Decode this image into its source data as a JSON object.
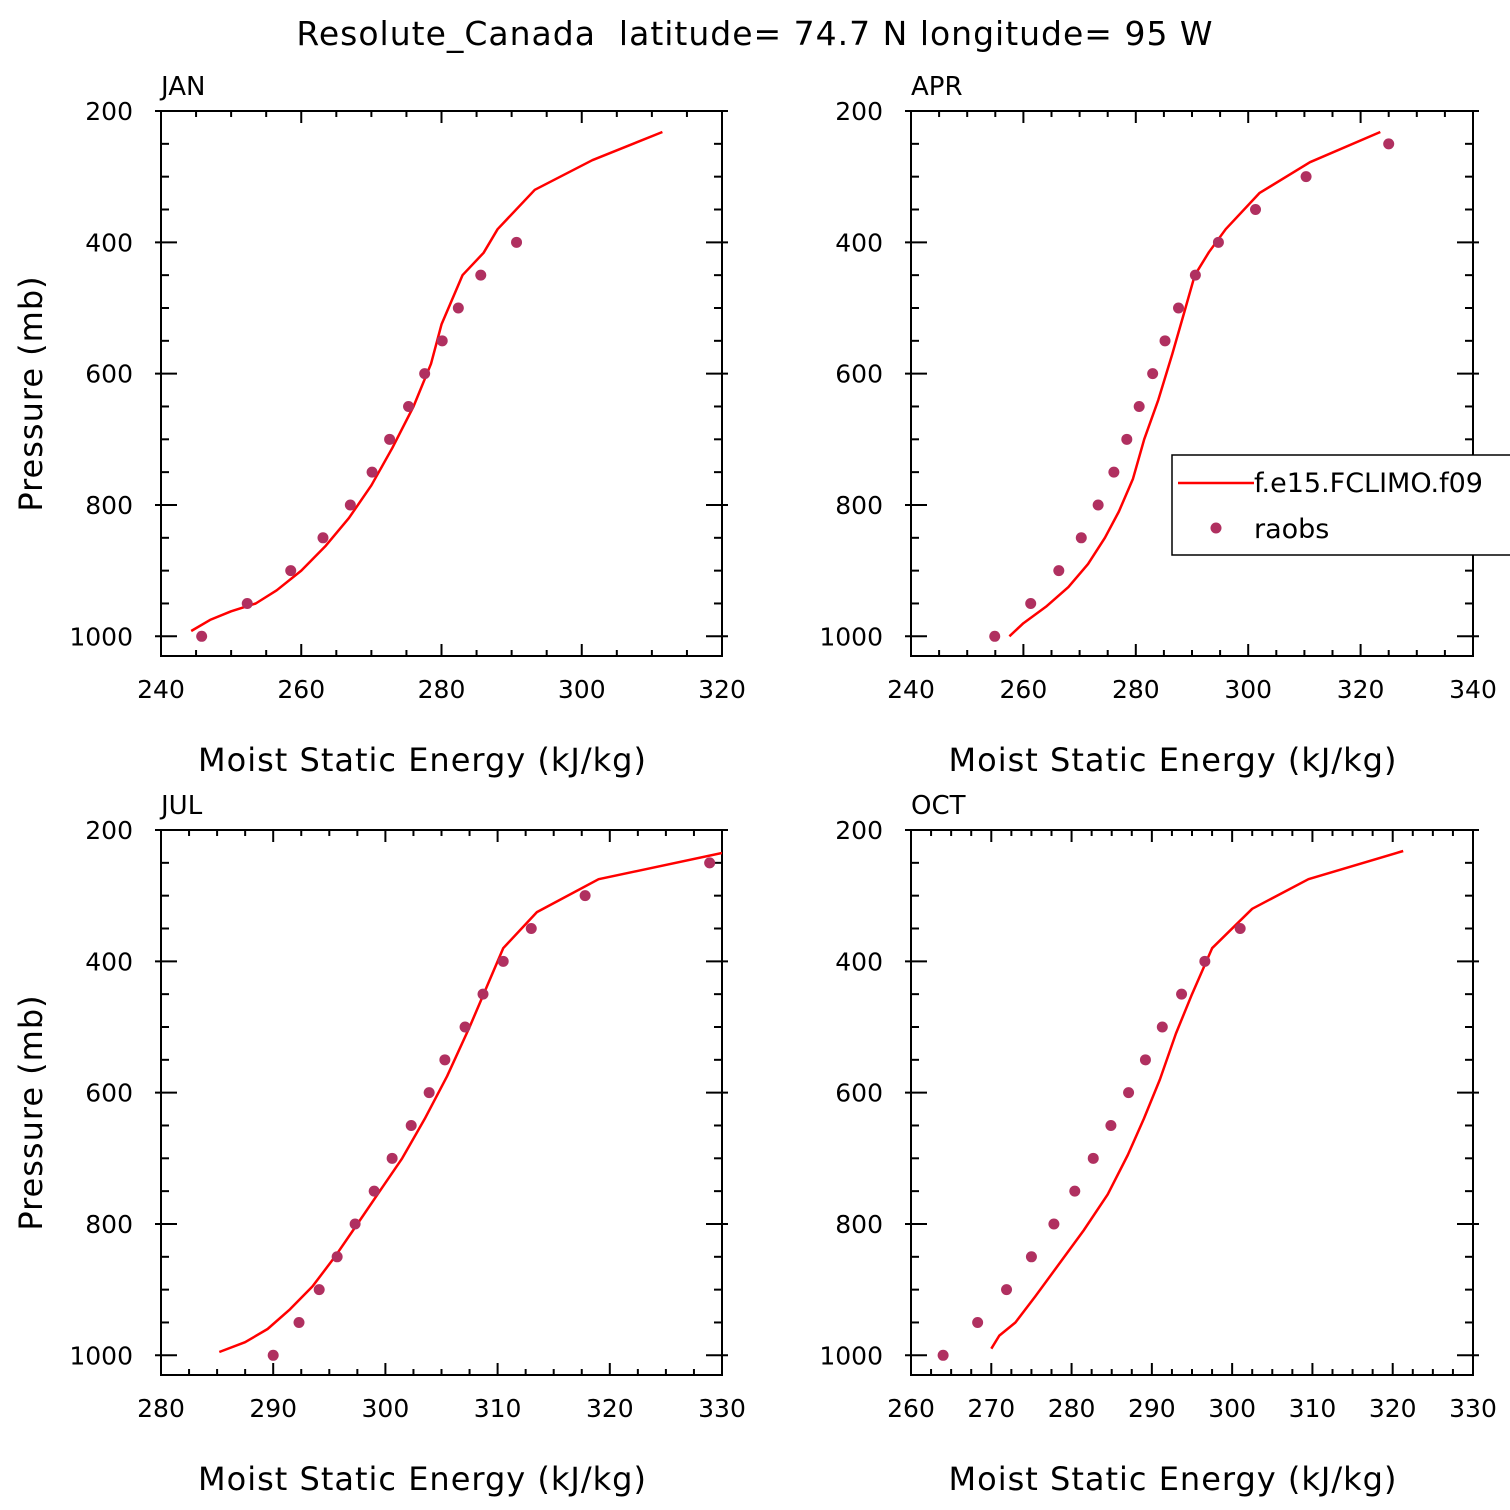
{
  "title": "Resolute_Canada  latitude= 74.7 N longitude= 95 W",
  "colors": {
    "model_line": "#ff0000",
    "obs_marker": "#b03060",
    "axes": "#000000"
  },
  "legend": {
    "entries": [
      "f.e15.FCLIMO.f09",
      "raobs"
    ],
    "panel": "APR"
  },
  "chart_data": [
    {
      "type": "line",
      "panel": "JAN",
      "xlabel": "Moist Static Energy (kJ/kg)",
      "ylabel": "Pressure (mb)",
      "xlim": [
        240,
        320
      ],
      "ylim": [
        1000,
        200
      ],
      "xticks": [
        240,
        260,
        280,
        300,
        320
      ],
      "yticks": [
        200,
        400,
        600,
        800,
        1000
      ],
      "series": [
        {
          "name": "f.e15.FCLIMO.f09",
          "kind": "line",
          "x": [
            244.3,
            247.0,
            250.0,
            253.5,
            256.5,
            260.0,
            263.5,
            266.8,
            270.0,
            273.0,
            276.0,
            278.5,
            280.0,
            283.0,
            286.0,
            288.0,
            293.3,
            301.5,
            311.5
          ],
          "y": [
            992,
            975,
            962,
            950,
            930,
            900,
            862,
            820,
            770,
            713,
            650,
            585,
            525,
            450,
            416,
            380,
            320,
            275,
            232
          ]
        },
        {
          "name": "raobs",
          "kind": "scatter",
          "x": [
            245.8,
            252.3,
            258.5,
            263.1,
            267.0,
            270.1,
            272.6,
            275.3,
            277.6,
            280.1,
            282.4,
            285.6,
            290.7
          ],
          "y": [
            1000,
            950,
            900,
            850,
            800,
            750,
            700,
            650,
            600,
            550,
            500,
            450,
            400
          ]
        }
      ]
    },
    {
      "type": "line",
      "panel": "APR",
      "xlabel": "Moist Static Energy (kJ/kg)",
      "ylabel": "",
      "xlim": [
        240,
        340
      ],
      "ylim": [
        1000,
        200
      ],
      "xticks": [
        240,
        260,
        280,
        300,
        320,
        340
      ],
      "yticks": [
        200,
        400,
        600,
        800,
        1000
      ],
      "series": [
        {
          "name": "f.e15.FCLIMO.f09",
          "kind": "line",
          "x": [
            257.5,
            260.0,
            264.0,
            268.0,
            271.5,
            274.5,
            277.0,
            279.5,
            281.5,
            284.0,
            286.5,
            288.5,
            290.5,
            293.0,
            296.0,
            302.0,
            311.0,
            323.5
          ],
          "y": [
            1000,
            980,
            955,
            925,
            890,
            850,
            810,
            760,
            700,
            640,
            570,
            510,
            450,
            415,
            380,
            325,
            278,
            232
          ]
        },
        {
          "name": "raobs",
          "kind": "scatter",
          "x": [
            254.9,
            261.3,
            266.3,
            270.3,
            273.3,
            276.1,
            278.4,
            280.6,
            283.0,
            285.2,
            287.6,
            290.6,
            294.7,
            301.3,
            310.3,
            325.0
          ],
          "y": [
            1000,
            950,
            900,
            850,
            800,
            750,
            700,
            650,
            600,
            550,
            500,
            450,
            400,
            350,
            300,
            250
          ]
        }
      ]
    },
    {
      "type": "line",
      "panel": "JUL",
      "xlabel": "Moist Static Energy (kJ/kg)",
      "ylabel": "Pressure (mb)",
      "xlim": [
        280,
        330
      ],
      "ylim": [
        1000,
        200
      ],
      "xticks": [
        280,
        290,
        300,
        310,
        320,
        330
      ],
      "yticks": [
        200,
        400,
        600,
        800,
        1000
      ],
      "series": [
        {
          "name": "f.e15.FCLIMO.f09",
          "kind": "line",
          "x": [
            285.2,
            287.5,
            289.5,
            291.5,
            293.5,
            295.5,
            297.5,
            299.5,
            301.5,
            303.5,
            305.5,
            307.5,
            309.0,
            310.5,
            313.5,
            319.0,
            330.0
          ],
          "y": [
            995,
            980,
            960,
            930,
            895,
            850,
            800,
            750,
            700,
            640,
            575,
            500,
            440,
            380,
            325,
            275,
            235
          ]
        },
        {
          "name": "raobs",
          "kind": "scatter",
          "x": [
            290.0,
            292.3,
            294.1,
            295.7,
            297.3,
            299.0,
            300.6,
            302.3,
            303.9,
            305.3,
            307.1,
            308.7,
            310.5,
            313.0,
            317.8,
            328.9
          ],
          "y": [
            1000,
            950,
            900,
            850,
            800,
            750,
            700,
            650,
            600,
            550,
            500,
            450,
            400,
            350,
            300,
            250
          ]
        }
      ]
    },
    {
      "type": "line",
      "panel": "OCT",
      "xlabel": "Moist Static Energy (kJ/kg)",
      "ylabel": "",
      "xlim": [
        260,
        330
      ],
      "ylim": [
        1000,
        200
      ],
      "xticks": [
        260,
        270,
        280,
        290,
        300,
        310,
        320,
        330
      ],
      "yticks": [
        200,
        400,
        600,
        800,
        1000
      ],
      "series": [
        {
          "name": "f.e15.FCLIMO.f09",
          "kind": "line",
          "x": [
            270.0,
            271.0,
            273.0,
            275.5,
            278.5,
            281.5,
            284.5,
            287.0,
            289.0,
            291.0,
            293.0,
            295.0,
            297.5,
            302.5,
            309.5,
            321.3
          ],
          "y": [
            990,
            970,
            950,
            910,
            860,
            810,
            755,
            695,
            640,
            580,
            510,
            450,
            380,
            320,
            275,
            232
          ]
        },
        {
          "name": "raobs",
          "kind": "scatter",
          "x": [
            264.0,
            268.3,
            271.9,
            275.0,
            277.8,
            280.4,
            282.7,
            284.9,
            287.1,
            289.2,
            291.3,
            293.7,
            296.6,
            301.0
          ],
          "y": [
            1000,
            950,
            900,
            850,
            800,
            750,
            700,
            650,
            600,
            550,
            500,
            450,
            400,
            350
          ]
        }
      ]
    }
  ]
}
